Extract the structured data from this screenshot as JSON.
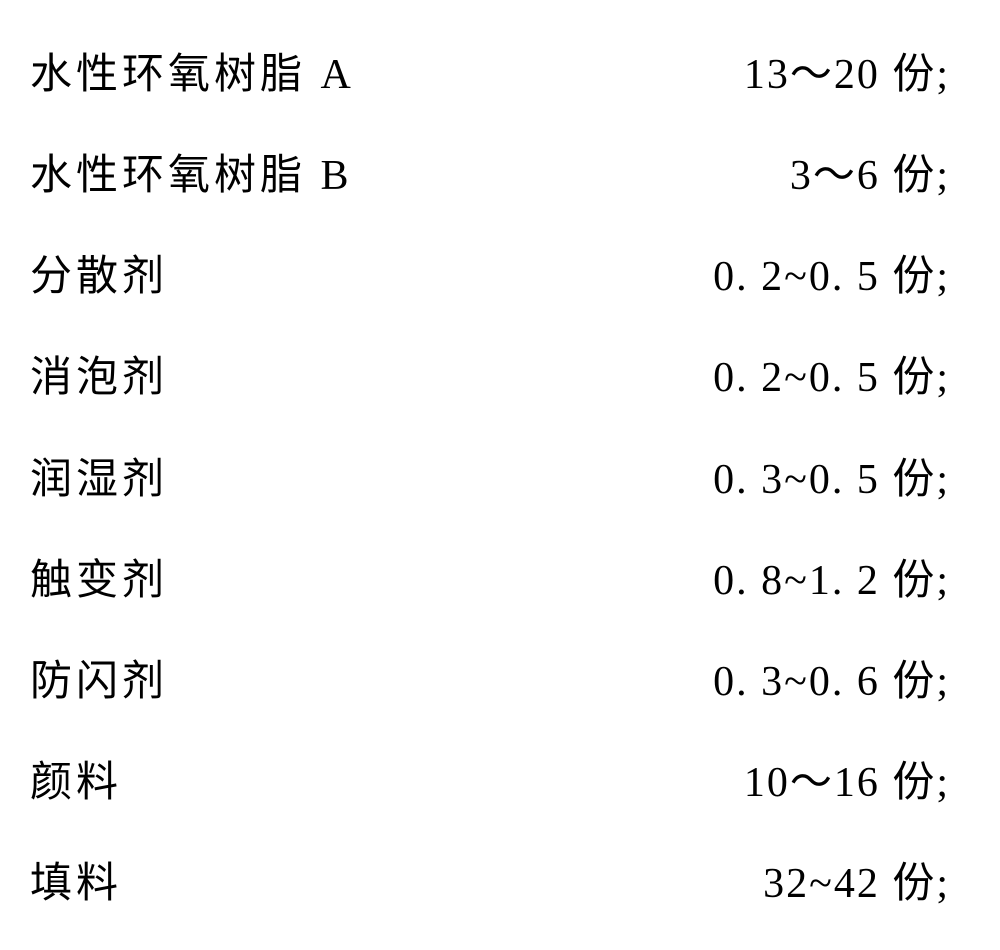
{
  "formulation": {
    "rows": [
      {
        "label": "水性环氧树脂 A",
        "value": "13～20 份;"
      },
      {
        "label": "水性环氧树脂 B",
        "value": "3～6 份;"
      },
      {
        "label": "分散剂",
        "value": "0. 2~0. 5 份;"
      },
      {
        "label": "消泡剂",
        "value": "0. 2~0. 5 份;"
      },
      {
        "label": "润湿剂",
        "value": "0. 3~0. 5 份;"
      },
      {
        "label": "触变剂",
        "value": "0. 8~1. 2 份;"
      },
      {
        "label": "防闪剂",
        "value": "0. 3~0. 6 份;"
      },
      {
        "label": "颜料",
        "value": "10～16 份;"
      },
      {
        "label": "填料",
        "value": "32~42 份;"
      }
    ],
    "styling": {
      "background_color": "#ffffff",
      "text_color": "#000000",
      "font_family": "SimSun",
      "label_fontsize": 42,
      "value_fontsize": 42,
      "row_count": 9,
      "column_count": 2
    }
  }
}
